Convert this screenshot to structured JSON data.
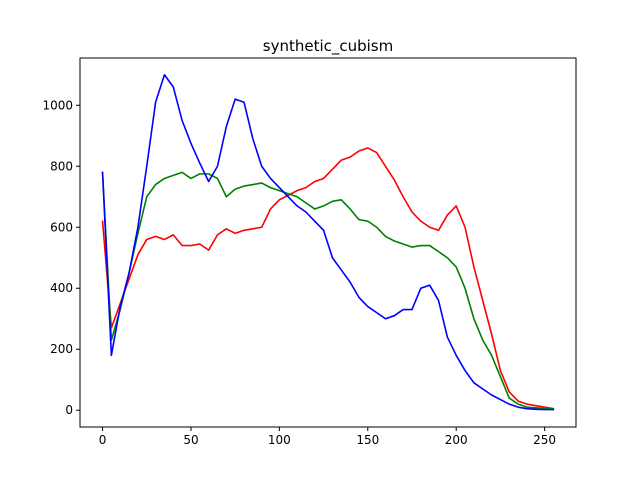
{
  "chart_data": {
    "type": "line",
    "title": "synthetic_cubism",
    "xlabel": "",
    "ylabel": "",
    "xlim": [
      -12.75,
      267.75
    ],
    "ylim": [
      -55,
      1155
    ],
    "x_ticks": [
      0,
      50,
      100,
      150,
      200,
      250
    ],
    "y_ticks": [
      0,
      200,
      400,
      600,
      800,
      1000
    ],
    "grid": false,
    "legend": "none",
    "x": [
      0,
      5,
      10,
      15,
      20,
      25,
      30,
      35,
      40,
      45,
      50,
      55,
      60,
      65,
      70,
      75,
      80,
      85,
      90,
      95,
      100,
      105,
      110,
      115,
      120,
      125,
      130,
      135,
      140,
      145,
      150,
      155,
      160,
      165,
      170,
      175,
      180,
      185,
      190,
      195,
      200,
      205,
      210,
      215,
      220,
      225,
      230,
      235,
      240,
      245,
      250,
      255
    ],
    "series": [
      {
        "color": "#ff0000",
        "values": [
          620,
          270,
          350,
          430,
          510,
          560,
          570,
          560,
          575,
          540,
          540,
          545,
          525,
          575,
          595,
          580,
          590,
          595,
          600,
          660,
          690,
          705,
          720,
          730,
          750,
          760,
          790,
          820,
          830,
          850,
          860,
          845,
          800,
          755,
          700,
          650,
          620,
          600,
          590,
          640,
          670,
          600,
          470,
          360,
          250,
          130,
          60,
          30,
          20,
          15,
          10,
          5
        ]
      },
      {
        "color": "#008000",
        "values": [
          780,
          230,
          330,
          450,
          580,
          700,
          740,
          760,
          770,
          780,
          760,
          775,
          775,
          760,
          700,
          725,
          735,
          740,
          745,
          730,
          720,
          710,
          700,
          680,
          660,
          670,
          685,
          690,
          660,
          625,
          620,
          600,
          570,
          555,
          545,
          535,
          540,
          540,
          520,
          500,
          470,
          400,
          300,
          230,
          180,
          110,
          40,
          20,
          10,
          8,
          5,
          5
        ]
      },
      {
        "color": "#0000ff",
        "values": [
          780,
          180,
          340,
          450,
          600,
          800,
          1010,
          1100,
          1060,
          950,
          875,
          810,
          750,
          800,
          930,
          1020,
          1010,
          890,
          800,
          760,
          730,
          700,
          670,
          650,
          620,
          590,
          500,
          460,
          420,
          370,
          340,
          320,
          300,
          310,
          330,
          330,
          400,
          410,
          360,
          240,
          180,
          130,
          90,
          70,
          50,
          35,
          20,
          10,
          5,
          3,
          2,
          2
        ]
      }
    ]
  }
}
